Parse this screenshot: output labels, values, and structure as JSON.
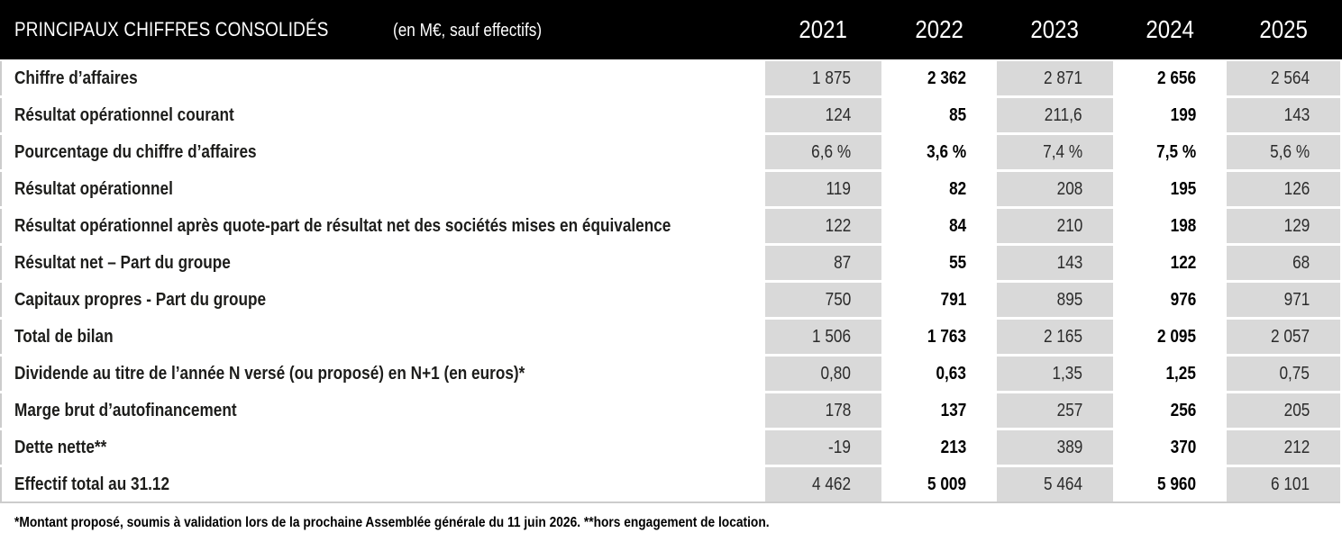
{
  "header": {
    "title": "PRINCIPAUX CHIFFRES CONSOLIDÉS",
    "subtitle": "(en M€, sauf effectifs)",
    "years": [
      "2021",
      "2022",
      "2023",
      "2024",
      "2025"
    ]
  },
  "table": {
    "rows": [
      {
        "label": "Chiffre d’affaires",
        "values": [
          "1 875",
          "2 362",
          "2 871",
          "2 656",
          "2 564"
        ]
      },
      {
        "label": "Résultat opérationnel courant",
        "values": [
          "124",
          "85",
          "211,6",
          "199",
          "143"
        ]
      },
      {
        "label": "Pourcentage du chiffre d’affaires",
        "values": [
          "6,6 %",
          "3,6 %",
          "7,4 %",
          "7,5 %",
          "5,6 %"
        ]
      },
      {
        "label": "Résultat opérationnel",
        "values": [
          "119",
          "82",
          "208",
          "195",
          "126"
        ]
      },
      {
        "label": "Résultat opérationnel après quote-part de résultat net des sociétés mises en équivalence",
        "values": [
          "122",
          "84",
          "210",
          "198",
          "129"
        ]
      },
      {
        "label": "Résultat net – Part du groupe",
        "values": [
          "87",
          "55",
          "143",
          "122",
          "68"
        ]
      },
      {
        "label": "Capitaux propres - Part du groupe",
        "values": [
          "750",
          "791",
          "895",
          "976",
          "971"
        ]
      },
      {
        "label": "Total de bilan",
        "values": [
          "1 506",
          "1 763",
          "2 165",
          "2 095",
          "2 057"
        ]
      },
      {
        "label": "Dividende au titre de l’année N versé (ou proposé) en N+1 (en euros)*",
        "values": [
          "0,80",
          "0,63",
          "1,35",
          "1,25",
          "0,75"
        ]
      },
      {
        "label": "Marge brut d’autofinancement",
        "values": [
          "178",
          "137",
          "257",
          "256",
          "205"
        ]
      },
      {
        "label": "Dette nette**",
        "values": [
          "-19",
          "213",
          "389",
          "370",
          "212"
        ]
      },
      {
        "label": "Effectif total au 31.12",
        "values": [
          "4 462",
          "5 009",
          "5 464",
          "5 960",
          "6 101"
        ]
      }
    ]
  },
  "footnote": "*Montant proposé, soumis à validation lors de la prochaine Assemblée générale du 11 juin 2026. **hors engagement de location.",
  "colors": {
    "header_bg": "#000000",
    "header_text": "#ffffff",
    "shaded_cell_bg": "#d9d9d9",
    "border": "#cccccc",
    "text": "#1d1d1b"
  }
}
